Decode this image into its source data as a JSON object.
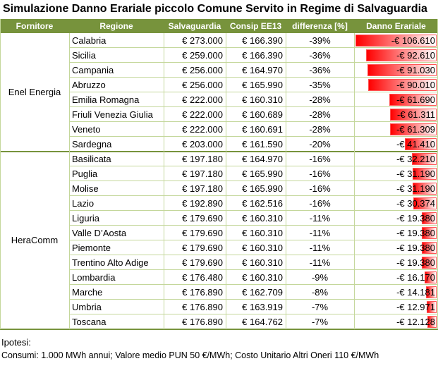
{
  "title": "Simulazione Danno Erariale piccolo Comune Servito in Regime di Salvaguardia",
  "table": {
    "header": [
      "Fornitore",
      "Regione",
      "Salvaguardia",
      "Consip EE13",
      "differenza [%]",
      "Danno Erariale"
    ],
    "groups": [
      {
        "fornitore": "Enel Energia",
        "rows": [
          [
            "Calabria",
            "€ 273.000",
            "€ 166.390",
            "-39%",
            "-€ 106.610"
          ],
          [
            "Sicilia",
            "€ 259.000",
            "€ 166.390",
            "-36%",
            "-€ 92.610"
          ],
          [
            "Campania",
            "€ 256.000",
            "€ 164.970",
            "-36%",
            "-€ 91.030"
          ],
          [
            "Abruzzo",
            "€ 256.000",
            "€ 165.990",
            "-35%",
            "-€ 90.010"
          ],
          [
            "Emilia Romagna",
            "€ 222.000",
            "€ 160.310",
            "-28%",
            "-€ 61.690"
          ],
          [
            "Friuli Venezia Giulia",
            "€ 222.000",
            "€ 160.689",
            "-28%",
            "-€ 61.311"
          ],
          [
            "Veneto",
            "€ 222.000",
            "€ 160.691",
            "-28%",
            "-€ 61.309"
          ],
          [
            "Sardegna",
            "€ 203.000",
            "€ 161.590",
            "-20%",
            "-€ 41.410"
          ]
        ]
      },
      {
        "fornitore": "HeraComm",
        "rows": [
          [
            "Basilicata",
            "€ 197.180",
            "€ 164.970",
            "-16%",
            "-€ 32.210"
          ],
          [
            "Puglia",
            "€ 197.180",
            "€ 165.990",
            "-16%",
            "-€ 31.190"
          ],
          [
            "Molise",
            "€ 197.180",
            "€ 165.990",
            "-16%",
            "-€ 31.190"
          ],
          [
            "Lazio",
            "€ 192.890",
            "€ 162.516",
            "-16%",
            "-€ 30.374"
          ],
          [
            "Liguria",
            "€ 179.690",
            "€ 160.310",
            "-11%",
            "-€ 19.380"
          ],
          [
            "Valle D’Aosta",
            "€ 179.690",
            "€ 160.310",
            "-11%",
            "-€ 19.380"
          ],
          [
            "Piemonte",
            "€ 179.690",
            "€ 160.310",
            "-11%",
            "-€ 19.380"
          ],
          [
            "Trentino Alto Adige",
            "€ 179.690",
            "€ 160.310",
            "-11%",
            "-€ 19.380"
          ],
          [
            "Lombardia",
            "€ 176.480",
            "€ 160.310",
            "-9%",
            "-€ 16.170"
          ],
          [
            "Marche",
            "€ 176.890",
            "€ 162.709",
            "-8%",
            "-€ 14.181"
          ],
          [
            "Umbria",
            "€ 176.890",
            "€ 163.919",
            "-7%",
            "-€ 12.971"
          ],
          [
            "Toscana",
            "€ 176.890",
            "€ 164.762",
            "-7%",
            "-€ 12.128"
          ]
        ]
      }
    ]
  },
  "footer": {
    "label": "Ipotesi:",
    "text": "Consumi: 1.000 MWh annui; Valore medio PUN 50 €/MWh; Costo Unitario Altri Oneri 110 €/MWh"
  }
}
